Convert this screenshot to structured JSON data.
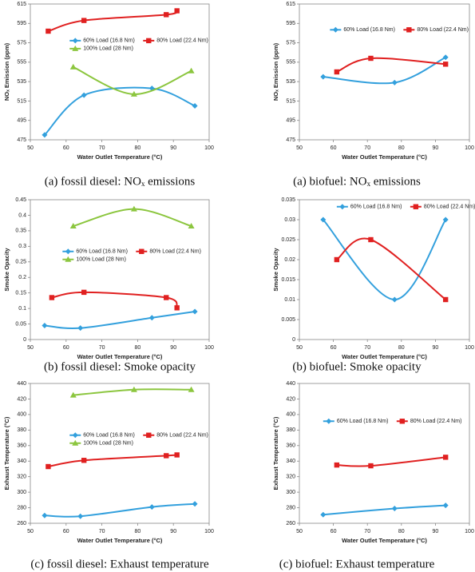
{
  "chart_data": [
    {
      "type": "line",
      "caption": "(a) fossil diesel: NOₓ emissions",
      "x_label": "Water Outlet Temperature (°C)",
      "y_label": "NOₓ Emission (ppm)",
      "xlim": [
        50,
        100
      ],
      "xticks": [
        50,
        60,
        70,
        80,
        90,
        100
      ],
      "ylim": [
        475,
        615
      ],
      "yticks": [
        475,
        495,
        515,
        535,
        555,
        575,
        595,
        615
      ],
      "series": [
        {
          "name": "60% Load (16.8 Nm)",
          "color": "#33a0dd",
          "marker": "diamond",
          "x": [
            54,
            65,
            84,
            96
          ],
          "values": [
            480,
            521,
            528,
            510
          ]
        },
        {
          "name": "80% Load (22.4 Nm)",
          "color": "#e02020",
          "marker": "square",
          "x": [
            55,
            65,
            88,
            91
          ],
          "values": [
            587,
            598,
            604,
            608
          ]
        },
        {
          "name": "100% Load (28 Nm)",
          "color": "#8cc63f",
          "marker": "triangle",
          "x": [
            62,
            79,
            95
          ],
          "values": [
            550,
            522,
            546
          ]
        }
      ]
    },
    {
      "type": "line",
      "caption": "(a) biofuel: NOₓ emissions",
      "x_label": "Water Outlet Temperature (°C)",
      "y_label": "NOₓ Emission (ppm)",
      "xlim": [
        50,
        100
      ],
      "xticks": [
        50,
        60,
        70,
        80,
        90,
        100
      ],
      "ylim": [
        475,
        615
      ],
      "yticks": [
        475,
        495,
        515,
        535,
        555,
        575,
        595,
        615
      ],
      "series": [
        {
          "name": "60% Load (16.8 Nm)",
          "color": "#33a0dd",
          "marker": "diamond",
          "x": [
            57,
            78,
            93
          ],
          "values": [
            540,
            534,
            560
          ]
        },
        {
          "name": "80% Load (22.4 Nm)",
          "color": "#e02020",
          "marker": "square",
          "x": [
            61,
            71,
            93
          ],
          "values": [
            545,
            559,
            553
          ]
        }
      ]
    },
    {
      "type": "line",
      "caption": "(b) fossil diesel: Smoke opacity",
      "x_label": "Water Outlet Temperature (°C)",
      "y_label": "Smoke Opacity",
      "xlim": [
        50,
        100
      ],
      "xticks": [
        50,
        60,
        70,
        80,
        90,
        100
      ],
      "ylim": [
        0,
        0.45
      ],
      "yticks": [
        0,
        0.05,
        0.1,
        0.15,
        0.2,
        0.25,
        0.3,
        0.35,
        0.4,
        0.45
      ],
      "series": [
        {
          "name": "60% Load (16.8 Nm)",
          "color": "#33a0dd",
          "marker": "diamond",
          "x": [
            54,
            64,
            84,
            96
          ],
          "values": [
            0.045,
            0.037,
            0.07,
            0.09
          ]
        },
        {
          "name": "80% Load (22.4 Nm)",
          "color": "#e02020",
          "marker": "square",
          "x": [
            56,
            65,
            88,
            91
          ],
          "values": [
            0.135,
            0.152,
            0.135,
            0.102
          ]
        },
        {
          "name": "100% Load (28 Nm)",
          "color": "#8cc63f",
          "marker": "triangle",
          "x": [
            62,
            79,
            95
          ],
          "values": [
            0.365,
            0.42,
            0.365
          ]
        }
      ]
    },
    {
      "type": "line",
      "caption": "(b) biofuel: Smoke opacity",
      "x_label": "Water Outlet Temperature (°C)",
      "y_label": "Smoke Opacity",
      "xlim": [
        50,
        100
      ],
      "xticks": [
        50,
        60,
        70,
        80,
        90,
        100
      ],
      "ylim": [
        0,
        0.035
      ],
      "yticks": [
        0,
        0.005,
        0.01,
        0.015,
        0.02,
        0.025,
        0.03,
        0.035
      ],
      "series": [
        {
          "name": "60% Load (16.8 Nm)",
          "color": "#33a0dd",
          "marker": "diamond",
          "x": [
            57,
            78,
            93
          ],
          "values": [
            0.03,
            0.01,
            0.03
          ]
        },
        {
          "name": "80% Load (22.4 Nm)",
          "color": "#e02020",
          "marker": "square",
          "x": [
            61,
            71,
            93
          ],
          "values": [
            0.02,
            0.025,
            0.01
          ]
        }
      ]
    },
    {
      "type": "line",
      "caption": "(c) fossil diesel: Exhaust temperature",
      "x_label": "Water Outlet Temperature (°C)",
      "y_label": "Exhaust Temperature (°C)",
      "xlim": [
        50,
        100
      ],
      "xticks": [
        50,
        60,
        70,
        80,
        90,
        100
      ],
      "ylim": [
        260,
        440
      ],
      "yticks": [
        260,
        280,
        300,
        320,
        340,
        360,
        380,
        400,
        420,
        440
      ],
      "series": [
        {
          "name": "60% Load (16.8 Nm)",
          "color": "#33a0dd",
          "marker": "diamond",
          "x": [
            54,
            64,
            84,
            96
          ],
          "values": [
            270,
            269,
            281,
            285
          ]
        },
        {
          "name": "80% Load (22.4 Nm)",
          "color": "#e02020",
          "marker": "square",
          "x": [
            55,
            65,
            88,
            91
          ],
          "values": [
            333,
            341,
            347,
            348
          ]
        },
        {
          "name": "100% Load (28 Nm)",
          "color": "#8cc63f",
          "marker": "triangle",
          "x": [
            62,
            79,
            95
          ],
          "values": [
            425,
            432,
            432
          ]
        }
      ]
    },
    {
      "type": "line",
      "caption": "(c) biofuel: Exhaust temperature",
      "x_label": "Water Outlet Temperature (°C)",
      "y_label": "Exhaust Temperature (°C)",
      "xlim": [
        50,
        100
      ],
      "xticks": [
        50,
        60,
        70,
        80,
        90,
        100
      ],
      "ylim": [
        260,
        440
      ],
      "yticks": [
        260,
        280,
        300,
        320,
        340,
        360,
        380,
        400,
        420,
        440
      ],
      "series": [
        {
          "name": "60% Load (16.8 Nm)",
          "color": "#33a0dd",
          "marker": "diamond",
          "x": [
            57,
            78,
            93
          ],
          "values": [
            271,
            279,
            283
          ]
        },
        {
          "name": "80% Load (22.4 Nm)",
          "color": "#e02020",
          "marker": "square",
          "x": [
            61,
            71,
            93
          ],
          "values": [
            335,
            334,
            345
          ]
        }
      ]
    }
  ]
}
